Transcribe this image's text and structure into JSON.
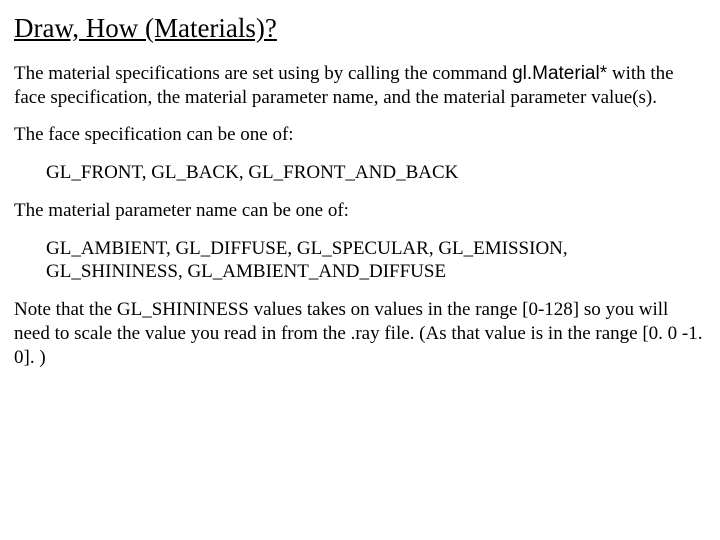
{
  "title": "Draw, How (Materials)?",
  "p1_a": "The material specifications are set using by calling the command ",
  "p1_cmd": "gl.Material*",
  "p1_b": " with the face specification, the material parameter name, and the material parameter value(s).",
  "p2": "The face specification can be one of:",
  "faces": "GL_FRONT, GL_BACK, GL_FRONT_AND_BACK",
  "p3": "The material parameter name can be one of:",
  "params": "GL_AMBIENT, GL_DIFFUSE, GL_SPECULAR, GL_EMISSION, GL_SHININESS, GL_AMBIENT_AND_DIFFUSE",
  "p4": "Note that the GL_SHININESS values takes on values in the range [0-128] so you will need to scale the value you read in from the .ray file. (As that value is in the range [0. 0 -1. 0]. )"
}
